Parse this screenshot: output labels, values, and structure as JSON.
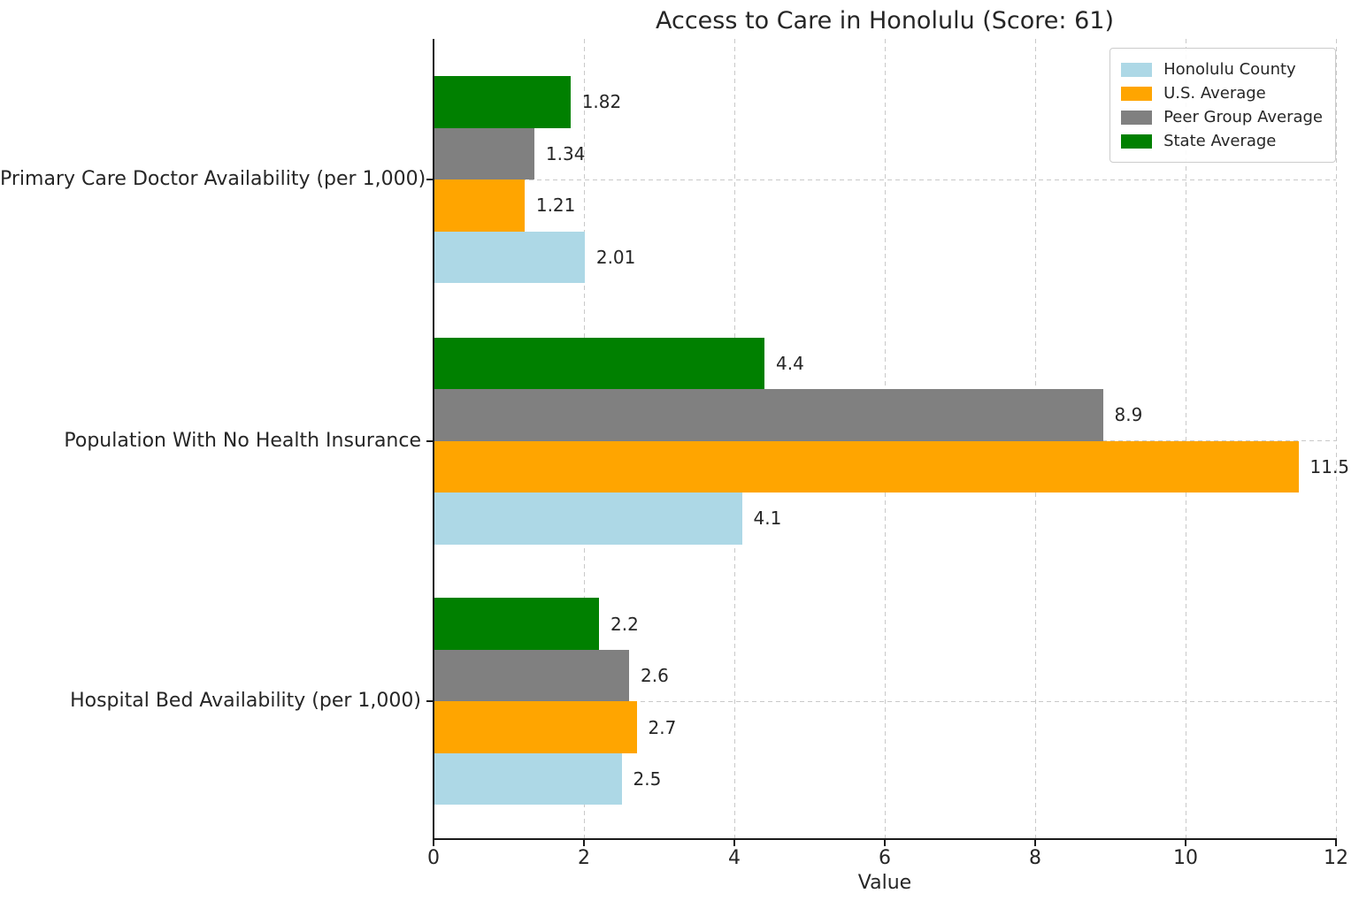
{
  "chart_data": {
    "type": "bar",
    "orientation": "horizontal",
    "title": "Access to Care in Honolulu (Score: 61)",
    "score": 61,
    "xlabel": "Value",
    "xlim": [
      0,
      12
    ],
    "xticks": [
      0,
      2,
      4,
      6,
      8,
      10,
      12
    ],
    "grid": true,
    "legend_position": "upper right",
    "categories": [
      "Primary Care Doctor Availability (per 1,000)",
      "Population With No Health Insurance",
      "Hospital Bed Availability (per 1,000)"
    ],
    "series": [
      {
        "name": "Honolulu County",
        "color": "#ADD8E6",
        "values": [
          2.01,
          4.1,
          2.5
        ],
        "value_labels": [
          "2.01",
          "4.1",
          "2.5"
        ]
      },
      {
        "name": "U.S. Average",
        "color": "#FFA500",
        "values": [
          1.21,
          11.5,
          2.7
        ],
        "value_labels": [
          "1.21",
          "11.5",
          "2.7"
        ]
      },
      {
        "name": "Peer Group Average",
        "color": "#808080",
        "values": [
          1.34,
          8.9,
          2.6
        ],
        "value_labels": [
          "1.34",
          "8.9",
          "2.6"
        ]
      },
      {
        "name": "State Average",
        "color": "#008000",
        "values": [
          1.82,
          4.4,
          2.2
        ],
        "value_labels": [
          "1.82",
          "4.4",
          "2.2"
        ]
      }
    ],
    "display_order_top_to_bottom": [
      "State Average",
      "Peer Group Average",
      "U.S. Average",
      "Honolulu County"
    ]
  },
  "styles": {
    "background": "#ffffff",
    "text_color": "#262626",
    "axis_color": "#1a1a1a",
    "grid_color": "#c9c9c9",
    "legend_border_color": "#cccccc"
  }
}
